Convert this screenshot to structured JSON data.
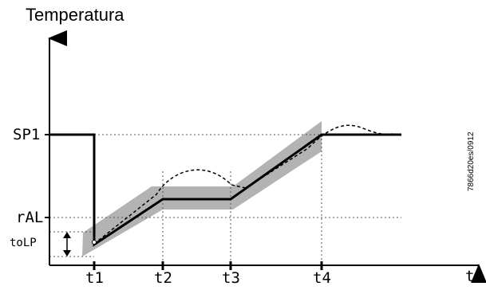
{
  "diagram": {
    "y_axis_label": "Temperatura",
    "x_axis_label": "t",
    "levels": {
      "sp1": "SP1",
      "ral": "rAL",
      "tolp": "toLP"
    },
    "time_marks": [
      "t1",
      "t2",
      "t3",
      "t4"
    ],
    "document_code": "7866d20es/0912"
  },
  "colors": {
    "band": "#b3b3b3",
    "line": "#000000",
    "guide": "#555555"
  }
}
